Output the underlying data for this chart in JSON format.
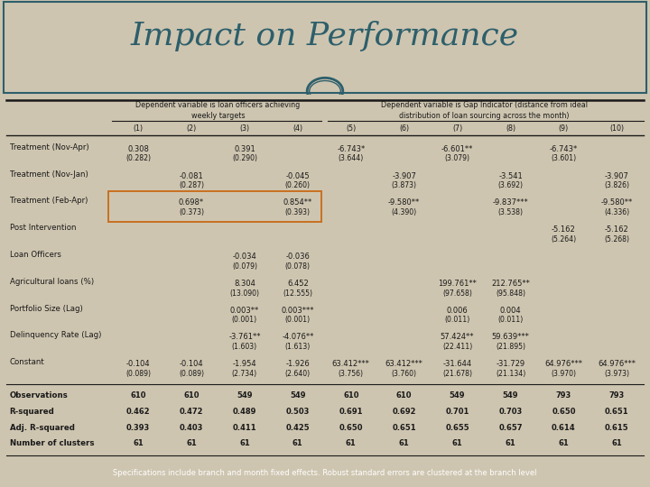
{
  "title": "Impact on Performance",
  "bg_color": "#cec5b0",
  "title_bg": "#ffffff",
  "title_color": "#2d5f6b",
  "border_color": "#2d5f6b",
  "footer_bg": "#4a6741",
  "footer_text": "Specifications include branch and month fixed effects. Robust standard errors are clustered at the branch level",
  "footer_text_color": "#ffffff",
  "table_bg": "#d4cbba",
  "col_header1": "Dependent variable is loan officers achieving\nweekly targets",
  "col_header2": "Dependent variable is Gap Indicator (distance from ideal\ndistribution of loan sourcing across the month)",
  "col_nums": [
    "(1)",
    "(2)",
    "(3)",
    "(4)",
    "(5)",
    "(6)",
    "(7)",
    "(8)",
    "(9)",
    "(10)"
  ],
  "rows": [
    {
      "label": "Treatment (Nov-Apr)",
      "values": [
        "0.308",
        "",
        "0.391",
        "",
        "-6.743*",
        "",
        "-6.601**",
        "",
        "-6.743*",
        ""
      ],
      "se": [
        "(0.282)",
        "",
        "(0.290)",
        "",
        "(3.644)",
        "",
        "(3.079)",
        "",
        "(3.601)",
        ""
      ]
    },
    {
      "label": "Treatment (Nov-Jan)",
      "values": [
        "",
        "-0.081",
        "",
        "-0.045",
        "",
        "-3.907",
        "",
        "-3.541",
        "",
        "-3.907"
      ],
      "se": [
        "",
        "(0.287)",
        "",
        "(0.260)",
        "",
        "(3.873)",
        "",
        "(3.692)",
        "",
        "(3.826)"
      ]
    },
    {
      "label": "Treatment (Feb-Apr)",
      "values": [
        "",
        "0.698*",
        "",
        "0.854**",
        "",
        "-9.580**",
        "",
        "-9.837***",
        "",
        "-9.580**"
      ],
      "se": [
        "",
        "(0.373)",
        "",
        "(0.393)",
        "",
        "(4.390)",
        "",
        "(3.538)",
        "",
        "(4.336)"
      ],
      "highlight": true
    },
    {
      "label": "Post Intervention",
      "values": [
        "",
        "",
        "",
        "",
        "",
        "",
        "",
        "",
        "-5.162",
        "-5.162"
      ],
      "se": [
        "",
        "",
        "",
        "",
        "",
        "",
        "",
        "",
        "(5.264)",
        "(5.268)"
      ]
    },
    {
      "label": "Loan Officers",
      "values": [
        "",
        "",
        "-0.034",
        "-0.036",
        "",
        "",
        "",
        "",
        "",
        ""
      ],
      "se": [
        "",
        "",
        "(0.079)",
        "(0.078)",
        "",
        "",
        "",
        "",
        "",
        ""
      ]
    },
    {
      "label": "Agricultural loans (%)",
      "values": [
        "",
        "",
        "8.304",
        "6.452",
        "",
        "",
        "199.761**",
        "212.765**",
        "",
        ""
      ],
      "se": [
        "",
        "",
        "(13.090)",
        "(12.555)",
        "",
        "",
        "(97.658)",
        "(95.848)",
        "",
        ""
      ]
    },
    {
      "label": "Portfolio Size (Lag)",
      "values": [
        "",
        "",
        "0.003**",
        "0.003***",
        "",
        "",
        "0.006",
        "0.004",
        "",
        ""
      ],
      "se": [
        "",
        "",
        "(0.001)",
        "(0.001)",
        "",
        "",
        "(0.011)",
        "(0.011)",
        "",
        ""
      ]
    },
    {
      "label": "Delinquency Rate (Lag)",
      "values": [
        "",
        "",
        "-3.761**",
        "-4.076**",
        "",
        "",
        "57.424**",
        "59.639***",
        "",
        ""
      ],
      "se": [
        "",
        "",
        "(1.603)",
        "(1.613)",
        "",
        "",
        "(22.411)",
        "(21.895)",
        "",
        ""
      ]
    },
    {
      "label": "Constant",
      "values": [
        "-0.104",
        "-0.104",
        "-1.954",
        "-1.926",
        "63.412***",
        "63.412***",
        "-31.644",
        "-31.729",
        "64.976***",
        "64.976***"
      ],
      "se": [
        "(0.089)",
        "(0.089)",
        "(2.734)",
        "(2.640)",
        "(3.756)",
        "(3.760)",
        "(21.678)",
        "(21.134)",
        "(3.970)",
        "(3.973)"
      ]
    }
  ],
  "stats": [
    {
      "label": "Observations",
      "values": [
        "610",
        "610",
        "549",
        "549",
        "610",
        "610",
        "549",
        "549",
        "793",
        "793"
      ]
    },
    {
      "label": "R-squared",
      "values": [
        "0.462",
        "0.472",
        "0.489",
        "0.503",
        "0.691",
        "0.692",
        "0.701",
        "0.703",
        "0.650",
        "0.651"
      ]
    },
    {
      "label": "Adj. R-squared",
      "values": [
        "0.393",
        "0.403",
        "0.411",
        "0.425",
        "0.650",
        "0.651",
        "0.655",
        "0.657",
        "0.614",
        "0.615"
      ]
    },
    {
      "label": "Number of clusters",
      "values": [
        "61",
        "61",
        "61",
        "61",
        "61",
        "61",
        "61",
        "61",
        "61",
        "61"
      ]
    }
  ],
  "highlight_color": "#c87020",
  "text_color": "#1a1a1a",
  "line_color": "#1a1a1a"
}
